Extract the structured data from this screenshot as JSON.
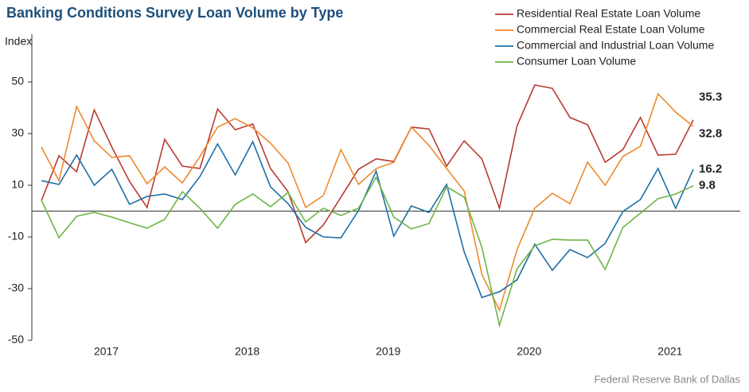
{
  "chart_data": {
    "type": "line",
    "title": "Banking Conditions Survey Loan Volume by Type",
    "y_label": "Index",
    "source": "Federal Reserve Bank of Dallas",
    "categories": [
      null,
      null,
      null,
      null,
      "2017",
      null,
      null,
      null,
      null,
      null,
      null,
      null,
      "2018",
      null,
      null,
      null,
      null,
      null,
      null,
      null,
      "2019",
      null,
      null,
      null,
      null,
      null,
      null,
      null,
      "2020",
      null,
      null,
      null,
      null,
      null,
      null,
      null,
      "2021",
      null
    ],
    "ylim": [
      -50,
      70
    ],
    "yticks": [
      -50,
      -30,
      -10,
      10,
      30,
      50
    ],
    "series": [
      {
        "name": "Residential Real Estate Loan Volume",
        "color": "#b83b32",
        "values": [
          4,
          21.4,
          15.2,
          39.2,
          24.8,
          11.5,
          1.4,
          27.8,
          17.4,
          16.5,
          39.5,
          31.5,
          33.7,
          16.5,
          7.5,
          -12.2,
          -5.4,
          5.4,
          16.2,
          20.2,
          19.2,
          32.5,
          31.8,
          17.4,
          27.2,
          20.2,
          1.1,
          33,
          48.8,
          47.5,
          36.2,
          33.4,
          18.9,
          23.8,
          36.2,
          21.7,
          22,
          35.3
        ]
      },
      {
        "name": "Commercial Real Estate Loan Volume",
        "color": "#ee8a2e",
        "values": [
          24.8,
          11.8,
          40.5,
          27.2,
          20.8,
          21.4,
          10.6,
          17.1,
          10.9,
          21.1,
          32.5,
          35.8,
          32.2,
          26.3,
          18.6,
          1.4,
          6,
          23.8,
          10.3,
          16.5,
          18.9,
          32.5,
          25.4,
          16.5,
          7.8,
          -24.5,
          -38.3,
          -14.9,
          1.1,
          6.9,
          2.9,
          18.9,
          10,
          21.1,
          25.1,
          45.4,
          38.3,
          32.8
        ]
      },
      {
        "name": "Commercial and Industrial Loan Volume",
        "color": "#1d6fa5",
        "values": [
          11.8,
          10.3,
          21.7,
          10,
          16.2,
          2.6,
          5.7,
          6.6,
          4.5,
          13.4,
          26,
          14,
          26.9,
          9.4,
          2.9,
          -6.3,
          -10,
          -10.3,
          0.2,
          15.5,
          -9.7,
          2,
          -0.5,
          10.3,
          -15.8,
          -33.4,
          -31.2,
          -26.6,
          -12.8,
          -22.9,
          -14.9,
          -18,
          -12.5,
          -0.2,
          4.5,
          16.5,
          1.1,
          16.2
        ]
      },
      {
        "name": "Consumer Loan Volume",
        "color": "#6fb545",
        "values": [
          4.2,
          -10.3,
          -2,
          -0.5,
          -2.3,
          -4.5,
          -6.6,
          -3.2,
          7.5,
          1.1,
          -6.6,
          2.6,
          6.6,
          1.7,
          7.2,
          -4.2,
          1.1,
          -1.7,
          1.1,
          13.1,
          -2.3,
          -6.9,
          -4.8,
          9.4,
          5.4,
          -14,
          -44.2,
          -22.3,
          -13.4,
          -10.9,
          -11.2,
          -11.2,
          -22.6,
          -6.3,
          -0.8,
          4.8,
          6.6,
          9.8
        ]
      }
    ]
  }
}
